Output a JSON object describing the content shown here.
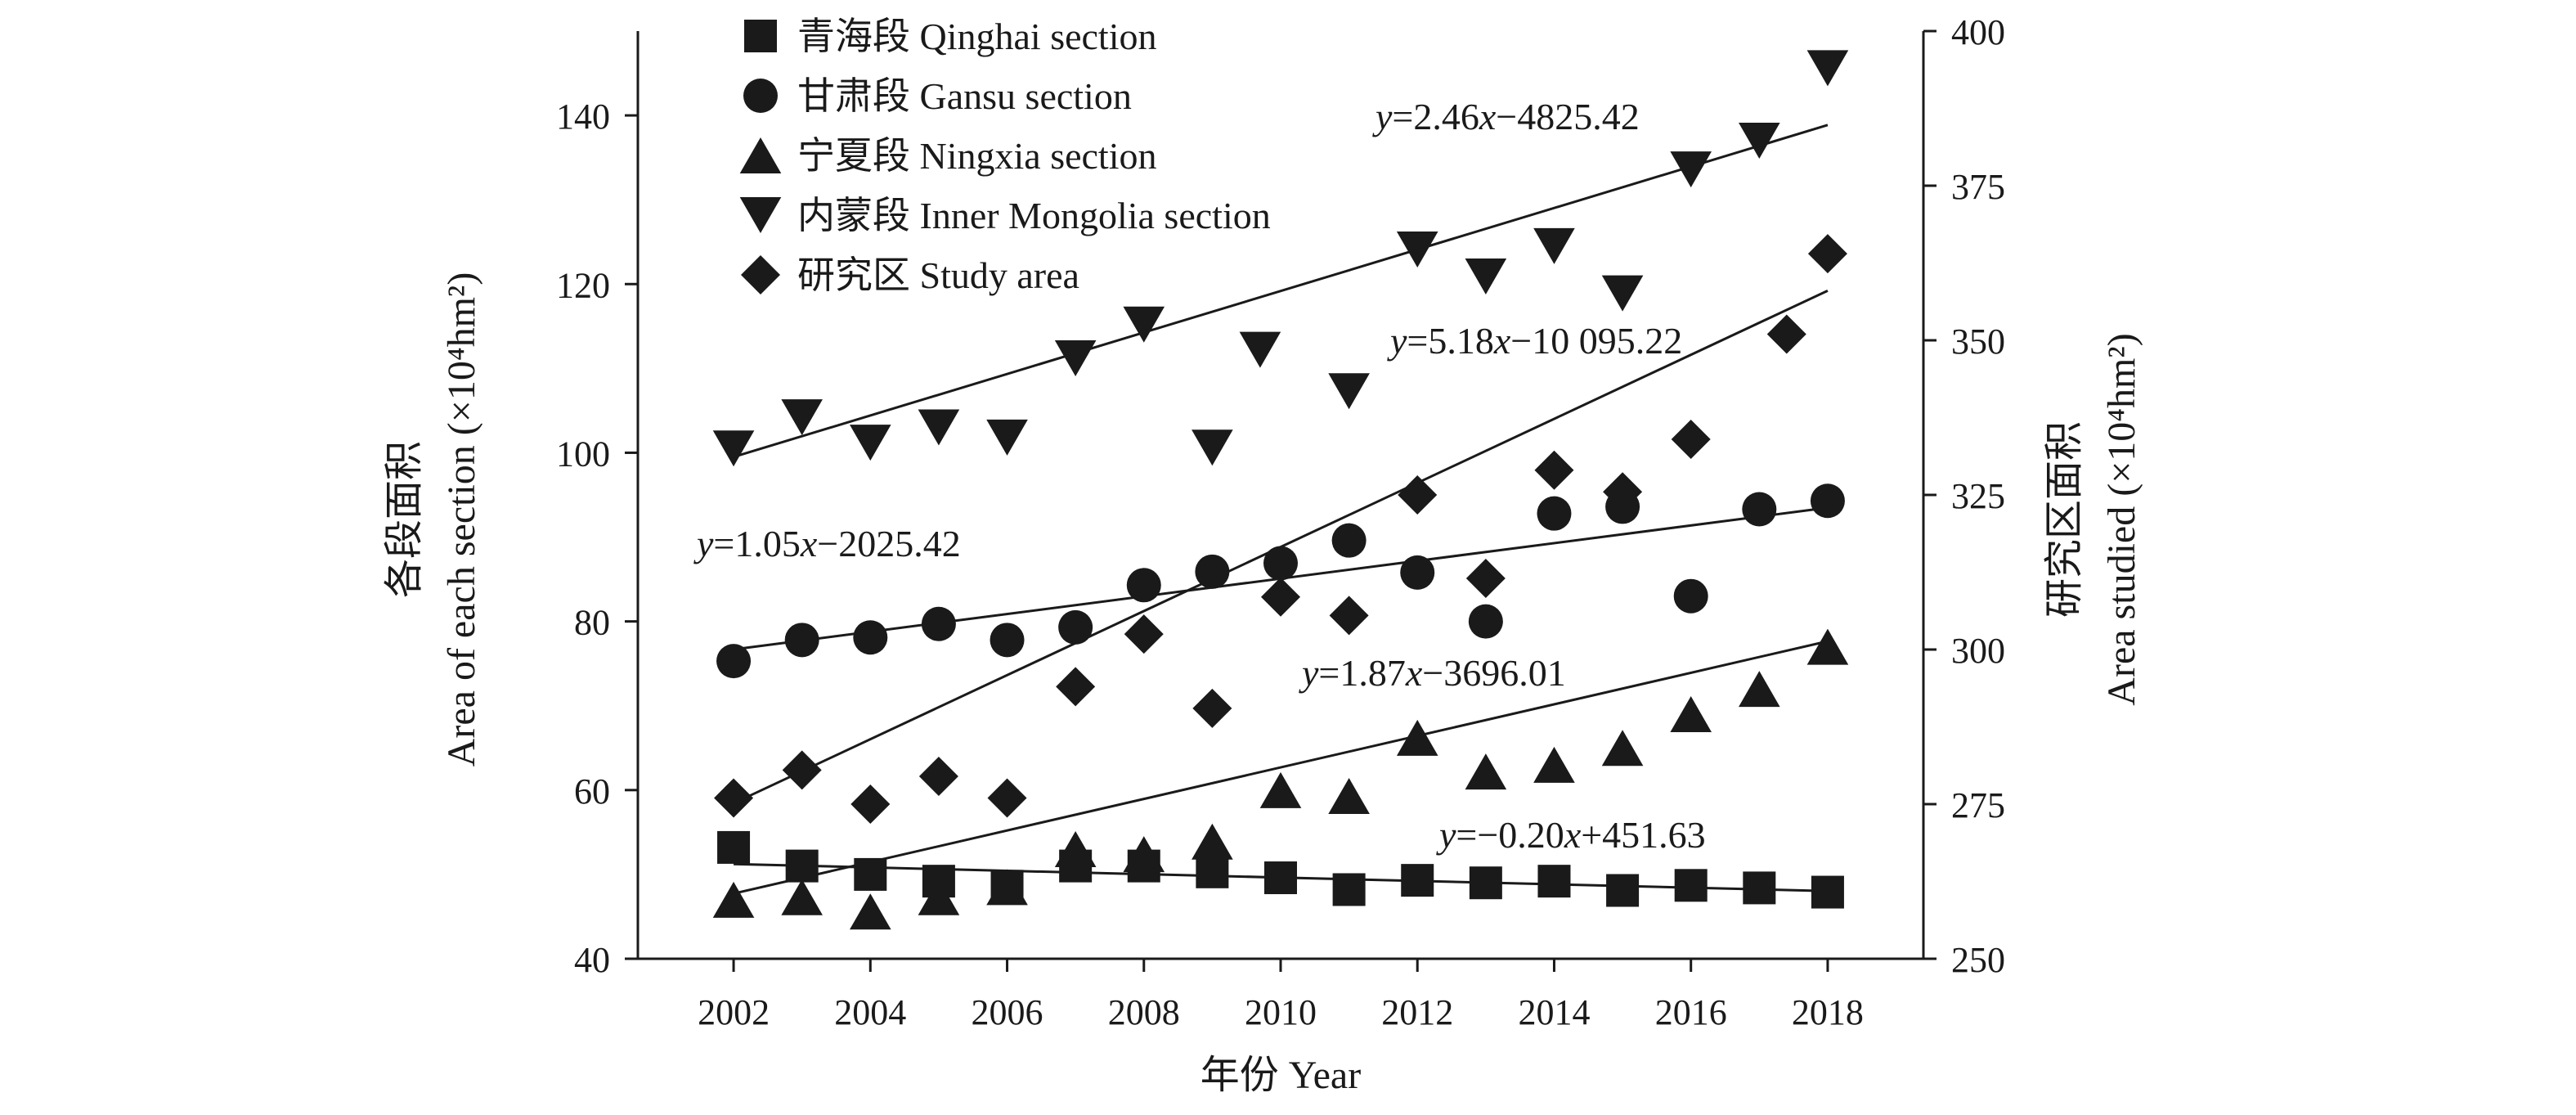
{
  "chart_data": {
    "type": "scatter",
    "x": [
      2002,
      2003,
      2004,
      2005,
      2006,
      2007,
      2008,
      2009,
      2010,
      2011,
      2012,
      2013,
      2014,
      2015,
      2016,
      2017,
      2018
    ],
    "xlabel": "年份 Year",
    "ylabel_left": [
      "各段面积",
      "Area of each section (×10⁴hm²)"
    ],
    "ylabel_right": [
      "研究区面积",
      "Area studied (×10⁴hm²)"
    ],
    "xlim": [
      2000.6,
      2019.4
    ],
    "xticks": [
      2002,
      2004,
      2006,
      2008,
      2010,
      2012,
      2014,
      2016,
      2018
    ],
    "ylim_left": [
      40,
      150
    ],
    "yticks_left": [
      40,
      60,
      80,
      100,
      120,
      140
    ],
    "ylim_right": [
      250,
      400
    ],
    "yticks_right": [
      250,
      275,
      300,
      325,
      350,
      375,
      400
    ],
    "grid": false,
    "legend_position": "top-left",
    "series": [
      {
        "name": "青海段 Qinghai section",
        "marker": "square",
        "axis": "left",
        "values": [
          53.2,
          51,
          50,
          49.2,
          48.6,
          51,
          51,
          50.3,
          49.6,
          48.2,
          49.3,
          49,
          49.2,
          48.1,
          48.7,
          48.4,
          47.9
        ],
        "trend": {
          "slope": -0.2,
          "intercept": 451.63
        }
      },
      {
        "name": "甘肃段 Gansu section",
        "marker": "circle",
        "axis": "left",
        "values": [
          75.3,
          77.8,
          78.1,
          79.7,
          77.8,
          79.3,
          84.3,
          85.9,
          86.9,
          89.6,
          85.8,
          80,
          92.8,
          93.6,
          83,
          93.3,
          94.3
        ],
        "trend": {
          "slope": 1.05,
          "intercept": -2025.42
        }
      },
      {
        "name": "宁夏段 Ningxia section",
        "marker": "triangle-up",
        "axis": "left",
        "values": [
          47,
          47.3,
          45.6,
          47.3,
          48.5,
          53,
          52.4,
          53.9,
          60,
          59.3,
          66.2,
          62.2,
          63,
          65,
          69,
          72,
          77
        ],
        "trend": {
          "slope": 1.87,
          "intercept": -3696.01
        }
      },
      {
        "name": "内蒙段 Inner Mongolia section",
        "marker": "triangle-down",
        "axis": "left",
        "x": [
          2002,
          2003,
          2004,
          2005,
          2006,
          2007,
          2008,
          2009,
          2009.7,
          2011,
          2012,
          2013,
          2014,
          2015,
          2016,
          2017,
          2018
        ],
        "values": [
          100.5,
          104.2,
          101.2,
          103,
          101.8,
          111.2,
          115.2,
          100.6,
          112.2,
          107.3,
          124.1,
          120.9,
          124.5,
          118.9,
          133.6,
          137,
          145.6
        ],
        "trend": {
          "slope": 2.46,
          "intercept": -4825.42
        }
      },
      {
        "name": "研究区 Study area",
        "marker": "diamond",
        "axis": "right",
        "x": [
          2002,
          2003,
          2004,
          2005,
          2006,
          2007,
          2008,
          2009,
          2010,
          2011,
          2012,
          2013,
          2014,
          2015,
          2016,
          2017.4,
          2018
        ],
        "values": [
          276,
          280.5,
          275,
          279.5,
          276,
          294,
          302.5,
          290.5,
          308.5,
          305.5,
          325,
          311.5,
          329,
          325.5,
          334,
          351,
          364
        ],
        "trend": {
          "slope": 5.18,
          "intercept": -10095.22
        }
      }
    ],
    "annotations": [
      {
        "italic": "y",
        "text": "=2.46",
        "italic2": "x",
        "text2": "−4825.42"
      },
      {
        "italic": "y",
        "text": "=5.18",
        "italic2": "x",
        "text2": "−10 095.22"
      },
      {
        "italic": "y",
        "text": "=1.05",
        "italic2": "x",
        "text2": "−2025.42"
      },
      {
        "italic": "y",
        "text": "=1.87",
        "italic2": "x",
        "text2": "−3696.01"
      },
      {
        "italic": "y",
        "text": "=−0.20",
        "italic2": "x",
        "text2": "+451.63"
      }
    ]
  }
}
